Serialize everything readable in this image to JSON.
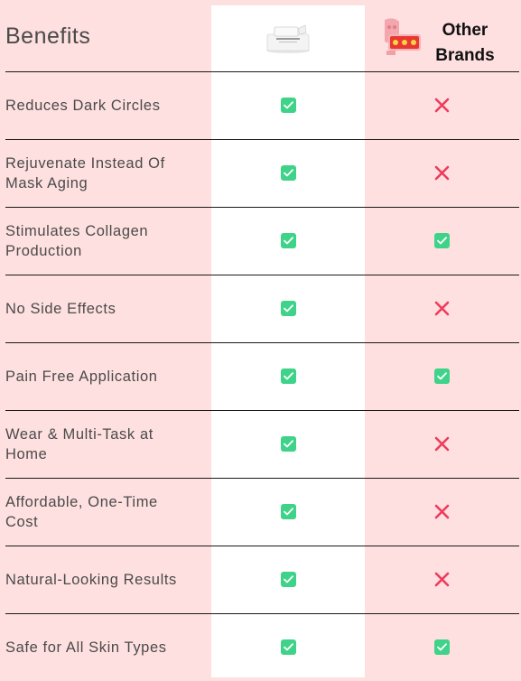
{
  "header": {
    "title": "Benefits",
    "other_brands_line1": "Other",
    "other_brands_line2": "Brands"
  },
  "colors": {
    "background": "#ffe0e0",
    "product_column": "#ffffff",
    "check": "#3fd38a",
    "cross": "#ee3b5b"
  },
  "rows": [
    {
      "label_line1": "Reduces Dark Circles",
      "label_line2": "",
      "product": "check",
      "other": "cross"
    },
    {
      "label_line1": "Rejuvenate Instead Of",
      "label_line2": "Mask Aging",
      "product": "check",
      "other": "cross"
    },
    {
      "label_line1": "Stimulates Collagen",
      "label_line2": "Production",
      "product": "check",
      "other": "check"
    },
    {
      "label_line1": "No Side Effects",
      "label_line2": "",
      "product": "check",
      "other": "cross"
    },
    {
      "label_line1": "Pain Free Application",
      "label_line2": "",
      "product": "check",
      "other": "check"
    },
    {
      "label_line1": "Wear & Multi-Task at",
      "label_line2": "Home",
      "product": "check",
      "other": "cross"
    },
    {
      "label_line1": "Affordable, One-Time",
      "label_line2": "Cost",
      "product": "check",
      "other": "cross"
    },
    {
      "label_line1": "Natural-Looking Results",
      "label_line2": "",
      "product": "check",
      "other": "cross"
    },
    {
      "label_line1": "Safe for All Skin Types",
      "label_line2": "",
      "product": "check",
      "other": "check"
    }
  ]
}
